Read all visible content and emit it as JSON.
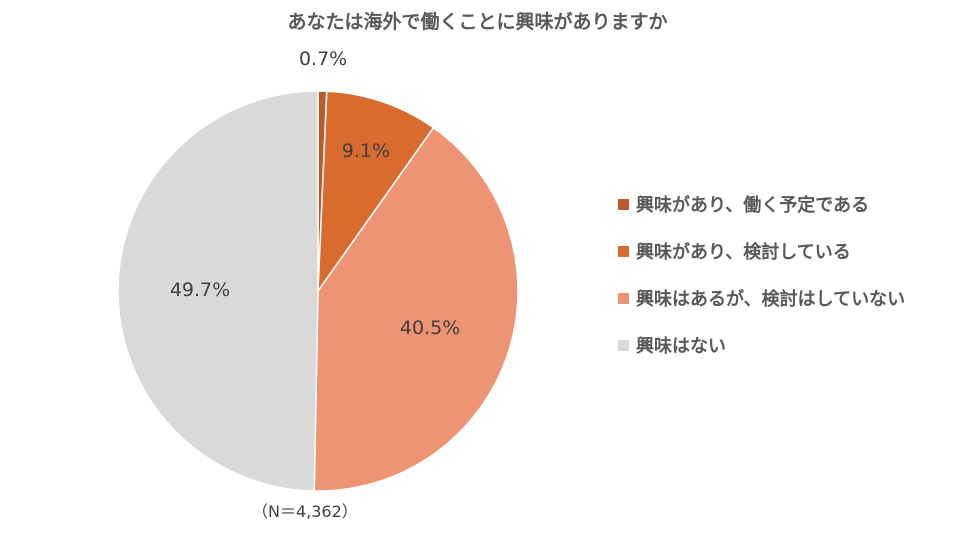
{
  "chart_data": {
    "type": "pie",
    "title": "あなたは海外で働くことに興味がありますか",
    "note": "（N＝4,362）",
    "legend_position": "right",
    "slices": [
      {
        "label": "興味があり、働く予定である",
        "value": 0.7,
        "display": "0.7%",
        "color": "#B85C2E"
      },
      {
        "label": "興味があり、検討している",
        "value": 9.1,
        "display": "9.1%",
        "color": "#D96B2F"
      },
      {
        "label": "興味はあるが、検討はしていない",
        "value": 40.5,
        "display": "40.5%",
        "color": "#EC9474"
      },
      {
        "label": "興味はない",
        "value": 49.7,
        "display": "49.7%",
        "color": "#D9D9D9"
      }
    ]
  }
}
